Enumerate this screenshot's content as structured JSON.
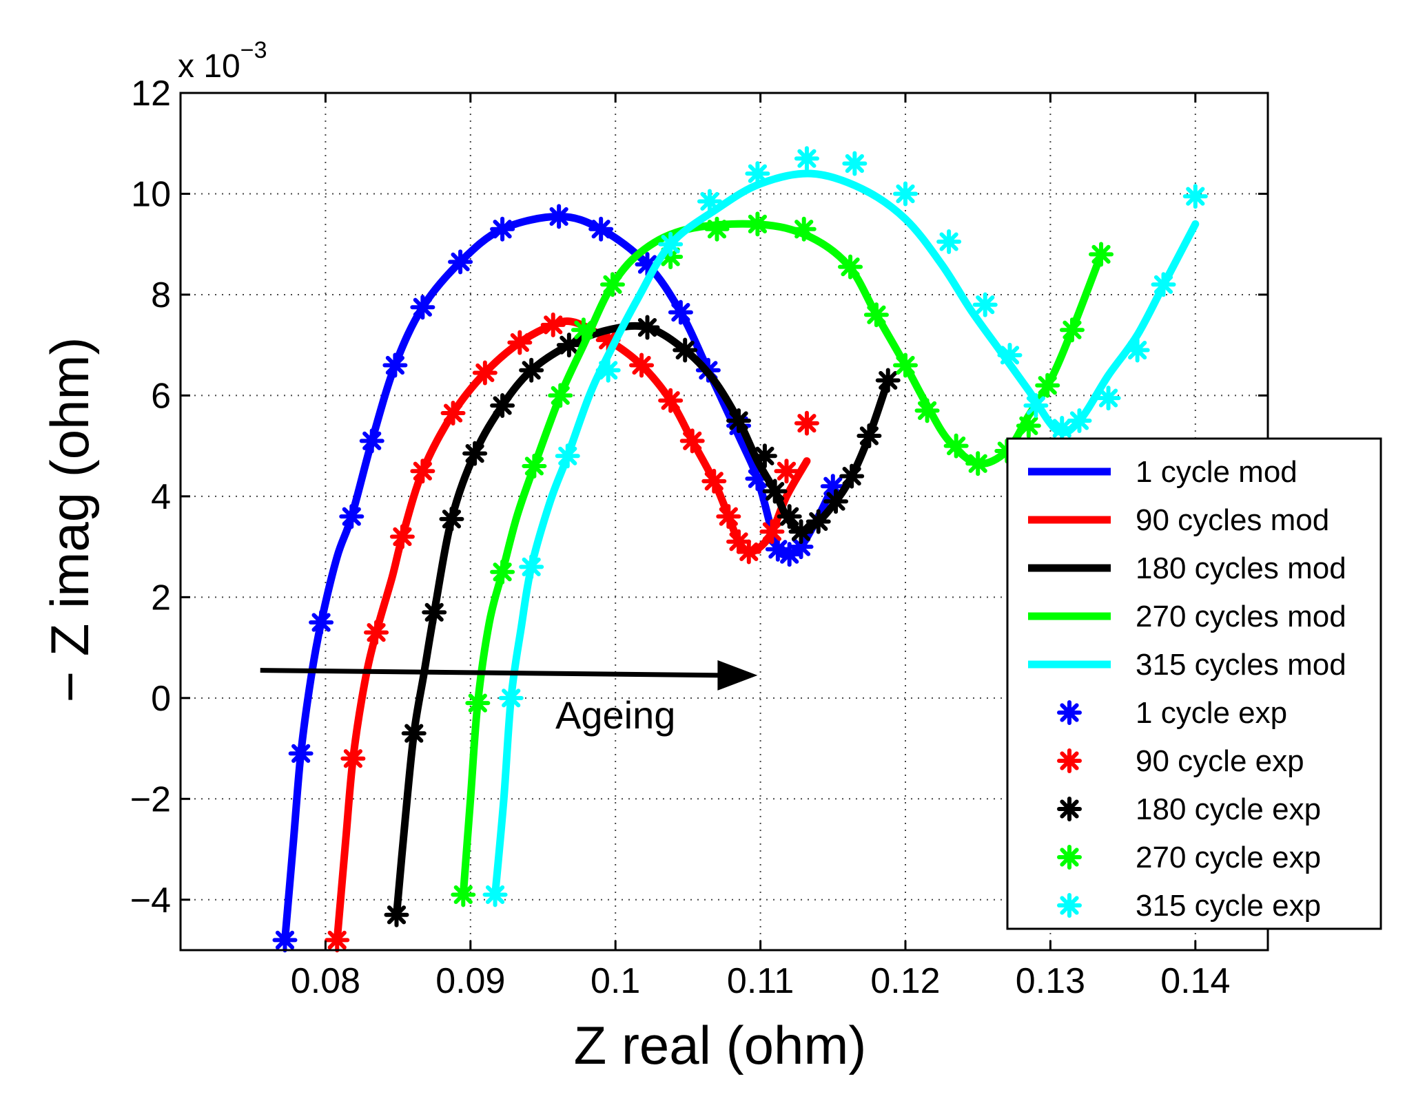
{
  "chart_data": {
    "type": "line",
    "xlabel": "Z real (ohm)",
    "ylabel": "− Z imag (ohm)",
    "y_multiplier_label": "x 10",
    "y_multiplier_exponent": "−3",
    "xlim": [
      0.07,
      0.145
    ],
    "ylim": [
      -5,
      12
    ],
    "grid": true,
    "legend_position": "right",
    "x_ticks": [
      {
        "value": 0.08,
        "label": "0.08"
      },
      {
        "value": 0.09,
        "label": "0.09"
      },
      {
        "value": 0.1,
        "label": "0.1"
      },
      {
        "value": 0.11,
        "label": "0.11"
      },
      {
        "value": 0.12,
        "label": "0.12"
      },
      {
        "value": 0.13,
        "label": "0.13"
      },
      {
        "value": 0.14,
        "label": "0.14"
      }
    ],
    "y_ticks": [
      {
        "value": -4,
        "label": "−4"
      },
      {
        "value": -2,
        "label": "−2"
      },
      {
        "value": 0,
        "label": "0"
      },
      {
        "value": 2,
        "label": "2"
      },
      {
        "value": 4,
        "label": "4"
      },
      {
        "value": 6,
        "label": "6"
      },
      {
        "value": 8,
        "label": "8"
      },
      {
        "value": 10,
        "label": "10"
      },
      {
        "value": 12,
        "label": "12"
      }
    ],
    "annotation": {
      "text": "Ageing",
      "arrow_from": [
        0.0755,
        0.55
      ],
      "arrow_to": [
        0.1098,
        0.45
      ],
      "text_at": [
        0.1,
        -0.6
      ]
    },
    "series": [
      {
        "name_mod": "1 cycle mod",
        "name_exp": "1 cycle exp",
        "color": "#0000ff",
        "model": [
          [
            0.0772,
            -4.8
          ],
          [
            0.0778,
            -2.8
          ],
          [
            0.0783,
            -1.1
          ],
          [
            0.079,
            0.4
          ],
          [
            0.0797,
            1.5
          ],
          [
            0.0808,
            2.8
          ],
          [
            0.0818,
            3.6
          ],
          [
            0.0832,
            5.1
          ],
          [
            0.0848,
            6.6
          ],
          [
            0.0867,
            7.75
          ],
          [
            0.0893,
            8.65
          ],
          [
            0.0922,
            9.3
          ],
          [
            0.0961,
            9.55
          ],
          [
            0.099,
            9.3
          ],
          [
            0.1022,
            8.6
          ],
          [
            0.1045,
            7.65
          ],
          [
            0.1064,
            6.5
          ],
          [
            0.1085,
            5.2
          ],
          [
            0.1098,
            4.35
          ],
          [
            0.1108,
            3.3
          ],
          [
            0.1113,
            2.9
          ],
          [
            0.112,
            2.85
          ],
          [
            0.1128,
            3.0
          ],
          [
            0.114,
            3.6
          ],
          [
            0.115,
            4.2
          ]
        ],
        "experimental": [
          [
            0.0772,
            -4.8
          ],
          [
            0.0783,
            -1.1
          ],
          [
            0.0797,
            1.5
          ],
          [
            0.0818,
            3.6
          ],
          [
            0.0832,
            5.1
          ],
          [
            0.0848,
            6.6
          ],
          [
            0.0867,
            7.75
          ],
          [
            0.0893,
            8.65
          ],
          [
            0.0922,
            9.3
          ],
          [
            0.0961,
            9.55
          ],
          [
            0.099,
            9.3
          ],
          [
            0.1022,
            8.6
          ],
          [
            0.1045,
            7.65
          ],
          [
            0.1064,
            6.5
          ],
          [
            0.1085,
            5.4
          ],
          [
            0.1098,
            4.35
          ],
          [
            0.1112,
            2.95
          ],
          [
            0.112,
            2.85
          ],
          [
            0.1128,
            3.0
          ],
          [
            0.115,
            4.2
          ]
        ]
      },
      {
        "name_mod": "90 cycles mod",
        "name_exp": "90 cycle exp",
        "color": "#ff0000",
        "model": [
          [
            0.0808,
            -4.8
          ],
          [
            0.0814,
            -2.8
          ],
          [
            0.0819,
            -1.2
          ],
          [
            0.0827,
            0.3
          ],
          [
            0.0835,
            1.3
          ],
          [
            0.0846,
            2.4
          ],
          [
            0.0853,
            3.2
          ],
          [
            0.0867,
            4.5
          ],
          [
            0.0888,
            5.65
          ],
          [
            0.091,
            6.45
          ],
          [
            0.0934,
            7.05
          ],
          [
            0.0957,
            7.4
          ],
          [
            0.0972,
            7.45
          ],
          [
            0.0995,
            7.1
          ],
          [
            0.1018,
            6.6
          ],
          [
            0.1038,
            5.9
          ],
          [
            0.1053,
            5.1
          ],
          [
            0.1068,
            4.3
          ],
          [
            0.1078,
            3.6
          ],
          [
            0.1085,
            3.1
          ],
          [
            0.1092,
            2.9
          ],
          [
            0.11,
            3.0
          ],
          [
            0.1108,
            3.3
          ],
          [
            0.1118,
            4.0
          ],
          [
            0.1132,
            4.7
          ]
        ],
        "experimental": [
          [
            0.0808,
            -4.8
          ],
          [
            0.0819,
            -1.2
          ],
          [
            0.0835,
            1.3
          ],
          [
            0.0853,
            3.2
          ],
          [
            0.0867,
            4.5
          ],
          [
            0.0888,
            5.65
          ],
          [
            0.091,
            6.45
          ],
          [
            0.0934,
            7.05
          ],
          [
            0.0957,
            7.4
          ],
          [
            0.0995,
            7.1
          ],
          [
            0.1018,
            6.6
          ],
          [
            0.1038,
            5.9
          ],
          [
            0.1053,
            5.1
          ],
          [
            0.1068,
            4.3
          ],
          [
            0.1078,
            3.6
          ],
          [
            0.1085,
            3.1
          ],
          [
            0.1092,
            2.9
          ],
          [
            0.1108,
            3.3
          ],
          [
            0.1118,
            4.5
          ],
          [
            0.1132,
            5.45
          ]
        ]
      },
      {
        "name_mod": "180 cycles mod",
        "name_exp": "180 cycle exp",
        "color": "#000000",
        "model": [
          [
            0.0849,
            -4.3
          ],
          [
            0.0855,
            -2.4
          ],
          [
            0.0861,
            -0.7
          ],
          [
            0.0868,
            0.5
          ],
          [
            0.0875,
            1.7
          ],
          [
            0.0887,
            3.55
          ],
          [
            0.0903,
            4.85
          ],
          [
            0.0922,
            5.8
          ],
          [
            0.0942,
            6.5
          ],
          [
            0.0968,
            7.0
          ],
          [
            0.0995,
            7.3
          ],
          [
            0.1022,
            7.35
          ],
          [
            0.1048,
            6.9
          ],
          [
            0.1068,
            6.3
          ],
          [
            0.1085,
            5.5
          ],
          [
            0.1098,
            4.7
          ],
          [
            0.111,
            4.1
          ],
          [
            0.1118,
            3.6
          ],
          [
            0.1128,
            3.3
          ],
          [
            0.114,
            3.5
          ],
          [
            0.1152,
            3.9
          ],
          [
            0.1163,
            4.4
          ],
          [
            0.1175,
            5.2
          ],
          [
            0.1188,
            6.3
          ]
        ],
        "experimental": [
          [
            0.0849,
            -4.3
          ],
          [
            0.0861,
            -0.7
          ],
          [
            0.0875,
            1.7
          ],
          [
            0.0887,
            3.55
          ],
          [
            0.0903,
            4.85
          ],
          [
            0.0922,
            5.8
          ],
          [
            0.0942,
            6.5
          ],
          [
            0.0968,
            7.0
          ],
          [
            0.1022,
            7.35
          ],
          [
            0.1048,
            6.9
          ],
          [
            0.1085,
            5.5
          ],
          [
            0.1103,
            4.8
          ],
          [
            0.111,
            4.1
          ],
          [
            0.112,
            3.6
          ],
          [
            0.1128,
            3.3
          ],
          [
            0.114,
            3.5
          ],
          [
            0.1152,
            3.9
          ],
          [
            0.1163,
            4.4
          ],
          [
            0.1175,
            5.2
          ],
          [
            0.1188,
            6.3
          ]
        ]
      },
      {
        "name_mod": "270 cycles mod",
        "name_exp": "270 cycle exp",
        "color": "#00ff00",
        "model": [
          [
            0.0895,
            -3.9
          ],
          [
            0.09,
            -2.0
          ],
          [
            0.0905,
            -0.1
          ],
          [
            0.0913,
            1.5
          ],
          [
            0.0922,
            2.5
          ],
          [
            0.0932,
            3.6
          ],
          [
            0.0944,
            4.6
          ],
          [
            0.0962,
            6.0
          ],
          [
            0.0978,
            7.0
          ],
          [
            0.0998,
            8.2
          ],
          [
            0.102,
            8.9
          ],
          [
            0.105,
            9.3
          ],
          [
            0.1095,
            9.4
          ],
          [
            0.113,
            9.2
          ],
          [
            0.116,
            8.6
          ],
          [
            0.118,
            7.6
          ],
          [
            0.12,
            6.6
          ],
          [
            0.1215,
            5.8
          ],
          [
            0.123,
            5.1
          ],
          [
            0.125,
            4.65
          ],
          [
            0.127,
            4.9
          ],
          [
            0.1285,
            5.6
          ],
          [
            0.13,
            6.3
          ],
          [
            0.1315,
            7.3
          ],
          [
            0.1335,
            8.8
          ]
        ],
        "experimental": [
          [
            0.0895,
            -3.9
          ],
          [
            0.0905,
            -0.1
          ],
          [
            0.0922,
            2.5
          ],
          [
            0.0944,
            4.6
          ],
          [
            0.0962,
            6.0
          ],
          [
            0.0978,
            7.3
          ],
          [
            0.0998,
            8.2
          ],
          [
            0.1038,
            8.75
          ],
          [
            0.107,
            9.3
          ],
          [
            0.1098,
            9.4
          ],
          [
            0.113,
            9.3
          ],
          [
            0.1162,
            8.55
          ],
          [
            0.118,
            7.6
          ],
          [
            0.12,
            6.6
          ],
          [
            0.1215,
            5.7
          ],
          [
            0.1235,
            5.0
          ],
          [
            0.125,
            4.65
          ],
          [
            0.127,
            4.9
          ],
          [
            0.1285,
            5.4
          ],
          [
            0.1298,
            6.2
          ],
          [
            0.1315,
            7.3
          ],
          [
            0.1335,
            8.8
          ]
        ]
      },
      {
        "name_mod": "315 cycles mod",
        "name_exp": "315 cycle exp",
        "color": "#00ffff",
        "model": [
          [
            0.0917,
            -3.9
          ],
          [
            0.0923,
            -2.0
          ],
          [
            0.0928,
            0.0
          ],
          [
            0.0935,
            1.4
          ],
          [
            0.0942,
            2.6
          ],
          [
            0.0955,
            3.9
          ],
          [
            0.0967,
            4.8
          ],
          [
            0.0982,
            6.0
          ],
          [
            0.0995,
            6.8
          ],
          [
            0.1015,
            7.9
          ],
          [
            0.1038,
            9.0
          ],
          [
            0.107,
            9.7
          ],
          [
            0.11,
            10.2
          ],
          [
            0.1135,
            10.4
          ],
          [
            0.117,
            10.1
          ],
          [
            0.12,
            9.5
          ],
          [
            0.1225,
            8.6
          ],
          [
            0.1245,
            7.7
          ],
          [
            0.1265,
            6.9
          ],
          [
            0.1285,
            6.1
          ],
          [
            0.1305,
            5.3
          ],
          [
            0.132,
            5.5
          ],
          [
            0.134,
            6.4
          ],
          [
            0.136,
            7.2
          ],
          [
            0.138,
            8.3
          ],
          [
            0.14,
            9.4
          ]
        ],
        "experimental": [
          [
            0.0917,
            -3.9
          ],
          [
            0.0928,
            0.0
          ],
          [
            0.0942,
            2.6
          ],
          [
            0.0967,
            4.8
          ],
          [
            0.0995,
            6.5
          ],
          [
            0.1038,
            9.0
          ],
          [
            0.1065,
            9.85
          ],
          [
            0.1098,
            10.4
          ],
          [
            0.1132,
            10.7
          ],
          [
            0.1165,
            10.6
          ],
          [
            0.12,
            10.0
          ],
          [
            0.123,
            9.05
          ],
          [
            0.1255,
            7.8
          ],
          [
            0.1272,
            6.8
          ],
          [
            0.129,
            5.8
          ],
          [
            0.1308,
            5.35
          ],
          [
            0.132,
            5.5
          ],
          [
            0.134,
            5.95
          ],
          [
            0.136,
            6.9
          ],
          [
            0.1378,
            8.2
          ],
          [
            0.14,
            9.95
          ]
        ]
      }
    ]
  }
}
